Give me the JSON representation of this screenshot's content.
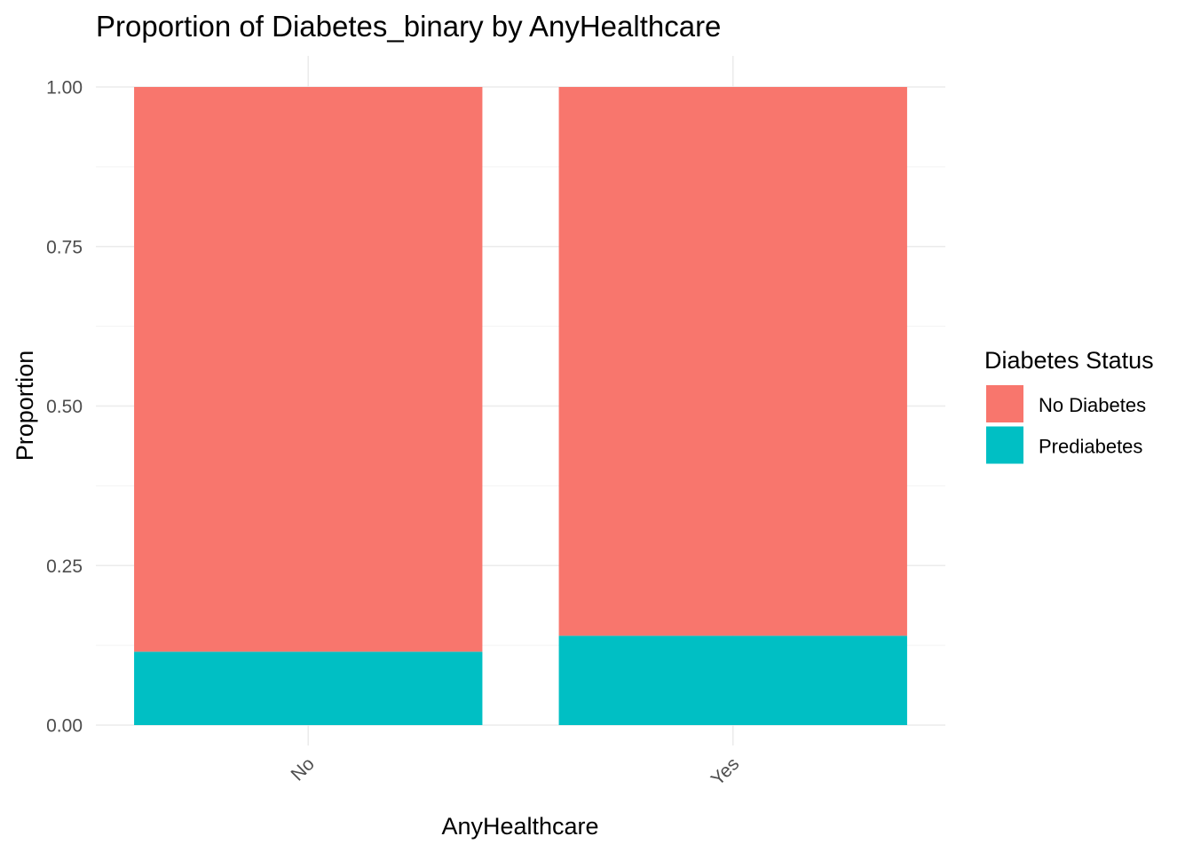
{
  "chart_data": {
    "type": "bar",
    "stacked": true,
    "title": "Proportion of Diabetes_binary by AnyHealthcare",
    "xlabel": "AnyHealthcare",
    "ylabel": "Proportion",
    "categories": [
      "No",
      "Yes"
    ],
    "series": [
      {
        "name": "No Diabetes",
        "color": "#F8766D",
        "values": [
          0.885,
          0.86
        ]
      },
      {
        "name": "Prediabetes",
        "color": "#00BFC4",
        "values": [
          0.115,
          0.14
        ]
      }
    ],
    "ylim": [
      0,
      1
    ],
    "yticks": [
      "0.00",
      "0.25",
      "0.50",
      "0.75",
      "1.00"
    ],
    "grid": true,
    "legend": {
      "title": "Diabetes Status",
      "placement": "right"
    }
  }
}
